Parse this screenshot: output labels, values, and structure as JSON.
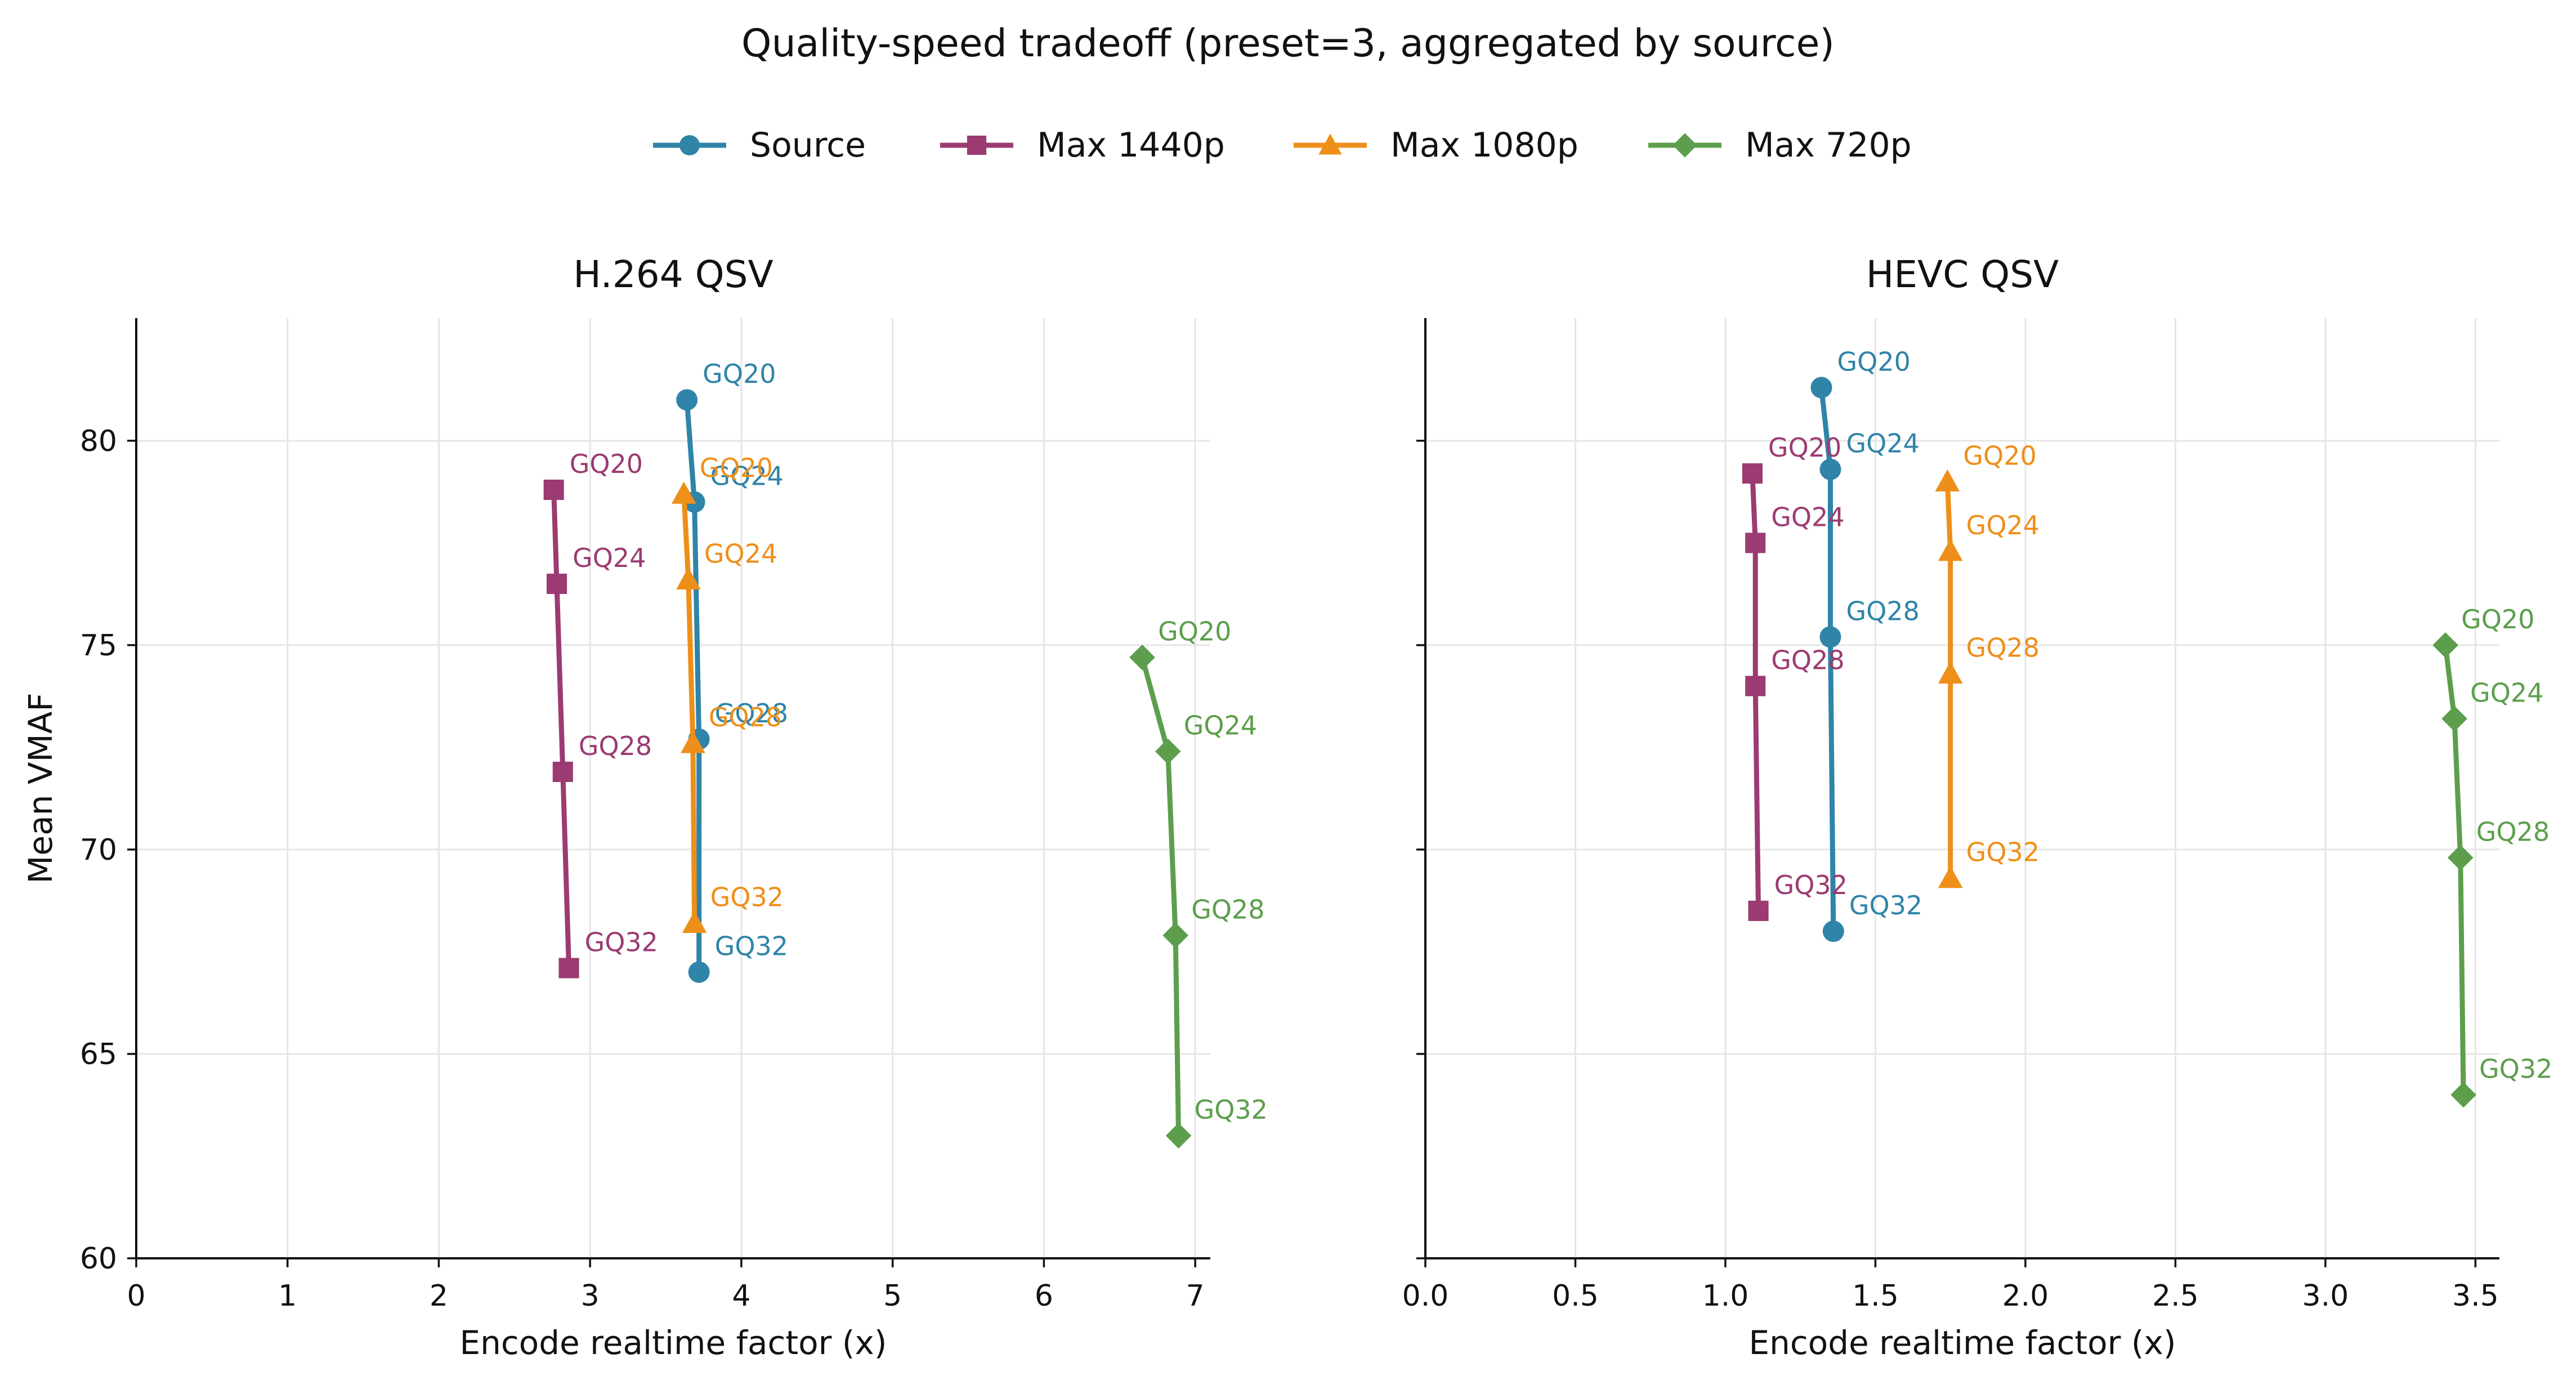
{
  "title": "Quality-speed tradeoff (preset=3, aggregated by source)",
  "legend": [
    {
      "name": "Source",
      "color": "#2f84a8",
      "marker": "circle"
    },
    {
      "name": "Max 1440p",
      "color": "#9b3b72",
      "marker": "square"
    },
    {
      "name": "Max 1080p",
      "color": "#ee8f1a",
      "marker": "triangle"
    },
    {
      "name": "Max 720p",
      "color": "#5c9e4c",
      "marker": "diamond"
    }
  ],
  "chart_data": [
    {
      "type": "line",
      "title": "H.264 QSV",
      "xlabel": "Encode realtime factor (x)",
      "ylabel": "Mean VMAF",
      "xlim": [
        0,
        7.1
      ],
      "ylim": [
        60,
        83
      ],
      "xticks": [
        "0",
        "1",
        "2",
        "3",
        "4",
        "5",
        "6",
        "7"
      ],
      "yticks": [
        "60",
        "65",
        "70",
        "75",
        "80"
      ],
      "grid": true,
      "series": [
        {
          "name": "Source",
          "points": [
            {
              "x": 3.64,
              "y": 81.0,
              "label": "GQ20"
            },
            {
              "x": 3.69,
              "y": 78.5,
              "label": "GQ24"
            },
            {
              "x": 3.72,
              "y": 72.7,
              "label": "GQ28"
            },
            {
              "x": 3.72,
              "y": 67.0,
              "label": "GQ32"
            }
          ]
        },
        {
          "name": "Max 1440p",
          "points": [
            {
              "x": 2.76,
              "y": 78.8,
              "label": "GQ20"
            },
            {
              "x": 2.78,
              "y": 76.5,
              "label": "GQ24"
            },
            {
              "x": 2.82,
              "y": 71.9,
              "label": "GQ28"
            },
            {
              "x": 2.86,
              "y": 67.1,
              "label": "GQ32"
            }
          ]
        },
        {
          "name": "Max 1080p",
          "points": [
            {
              "x": 3.62,
              "y": 78.7,
              "label": "GQ20"
            },
            {
              "x": 3.65,
              "y": 76.6,
              "label": "GQ24"
            },
            {
              "x": 3.68,
              "y": 72.6,
              "label": "GQ28"
            },
            {
              "x": 3.69,
              "y": 68.2,
              "label": "GQ32"
            }
          ]
        },
        {
          "name": "Max 720p",
          "points": [
            {
              "x": 6.65,
              "y": 74.7,
              "label": "GQ20"
            },
            {
              "x": 6.82,
              "y": 72.4,
              "label": "GQ24"
            },
            {
              "x": 6.87,
              "y": 67.9,
              "label": "GQ28"
            },
            {
              "x": 6.89,
              "y": 63.0,
              "label": "GQ32"
            }
          ]
        }
      ]
    },
    {
      "type": "line",
      "title": "HEVC QSV",
      "xlabel": "Encode realtime factor (x)",
      "ylabel": "",
      "xlim": [
        0,
        3.58
      ],
      "ylim": [
        60,
        83
      ],
      "xticks": [
        "0.0",
        "0.5",
        "1.0",
        "1.5",
        "2.0",
        "2.5",
        "3.0",
        "3.5"
      ],
      "yticks": [
        "60",
        "65",
        "70",
        "75",
        "80"
      ],
      "grid": true,
      "series": [
        {
          "name": "Source",
          "points": [
            {
              "x": 1.32,
              "y": 81.3,
              "label": "GQ20"
            },
            {
              "x": 1.35,
              "y": 79.3,
              "label": "GQ24"
            },
            {
              "x": 1.35,
              "y": 75.2,
              "label": "GQ28"
            },
            {
              "x": 1.36,
              "y": 68.0,
              "label": "GQ32"
            }
          ]
        },
        {
          "name": "Max 1440p",
          "points": [
            {
              "x": 1.09,
              "y": 79.2,
              "label": "GQ20"
            },
            {
              "x": 1.1,
              "y": 77.5,
              "label": "GQ24"
            },
            {
              "x": 1.1,
              "y": 74.0,
              "label": "GQ28"
            },
            {
              "x": 1.11,
              "y": 68.5,
              "label": "GQ32"
            }
          ]
        },
        {
          "name": "Max 1080p",
          "points": [
            {
              "x": 1.74,
              "y": 79.0,
              "label": "GQ20"
            },
            {
              "x": 1.75,
              "y": 77.3,
              "label": "GQ24"
            },
            {
              "x": 1.75,
              "y": 74.3,
              "label": "GQ28"
            },
            {
              "x": 1.75,
              "y": 69.3,
              "label": "GQ32"
            }
          ]
        },
        {
          "name": "Max 720p",
          "points": [
            {
              "x": 3.4,
              "y": 75.0,
              "label": "GQ20"
            },
            {
              "x": 3.43,
              "y": 73.2,
              "label": "GQ24"
            },
            {
              "x": 3.45,
              "y": 69.8,
              "label": "GQ28"
            },
            {
              "x": 3.46,
              "y": 64.0,
              "label": "GQ32"
            }
          ]
        }
      ]
    }
  ]
}
